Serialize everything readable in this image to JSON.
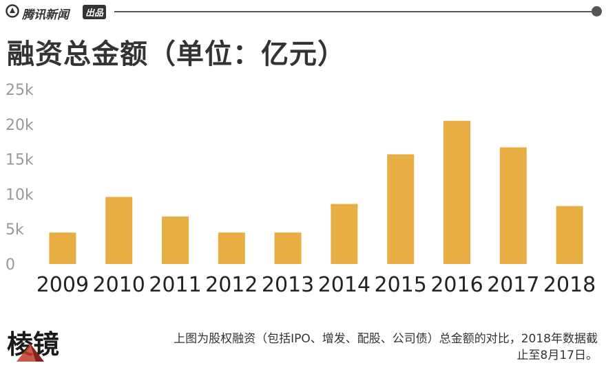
{
  "header": {
    "brand_name": "腾讯新闻",
    "brand_badge": "出品",
    "icon": "tencent-news-logo-icon"
  },
  "footer": {
    "logo_text": "棱镜",
    "note_line1": "上图为股权融资（包括IPO、增发、配股、公司债）总金额的对比，2018年数据截",
    "note_line2": "止至8月17日。"
  },
  "colors": {
    "bar": "#E8AD43",
    "axis_text": "#999999",
    "title_text": "#333333"
  },
  "chart_data": {
    "type": "bar",
    "title": "融资总金额（单位：亿元）",
    "categories": [
      "2009",
      "2010",
      "2011",
      "2012",
      "2013",
      "2014",
      "2015",
      "2016",
      "2017",
      "2018"
    ],
    "values": [
      4500,
      9600,
      6800,
      4500,
      4500,
      8600,
      15700,
      20500,
      16700,
      8300
    ],
    "yticks": [
      "0",
      "5k",
      "10k",
      "15k",
      "20k",
      "25k"
    ],
    "ylim": [
      0,
      25000
    ],
    "grid": false,
    "legend": "none"
  }
}
